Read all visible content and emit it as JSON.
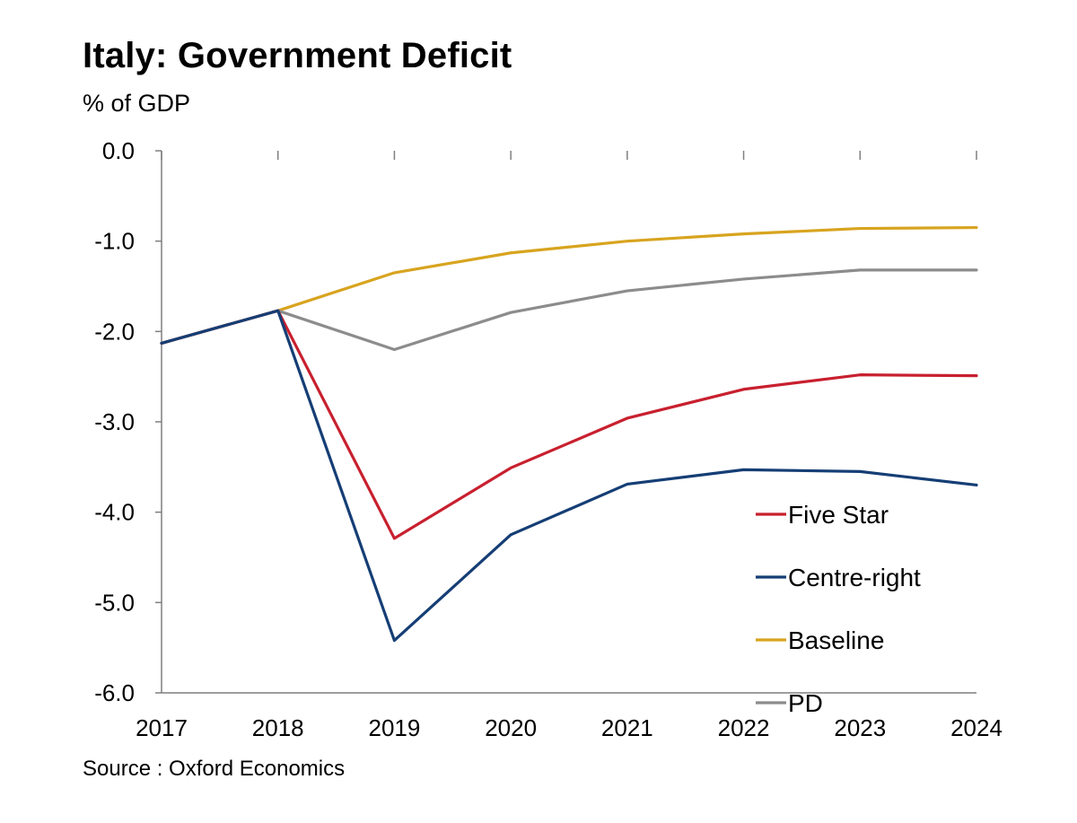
{
  "chart_data": {
    "type": "line",
    "title": "Italy:  Government Deficit",
    "subtitle": "% of GDP",
    "source": "Source : Oxford Economics",
    "x": [
      "2017",
      "2018",
      "2019",
      "2020",
      "2021",
      "2022",
      "2023",
      "2024"
    ],
    "ylim": [
      -6.0,
      0.0
    ],
    "yticks": [
      "0.0",
      "-1.0",
      "-2.0",
      "-3.0",
      "-4.0",
      "-5.0",
      "-6.0"
    ],
    "ytick_values": [
      0,
      -1,
      -2,
      -3,
      -4,
      -5,
      -6
    ],
    "grid": false,
    "legend_position": "bottom-right",
    "series": [
      {
        "name": "Five Star",
        "color": "#c8202f",
        "values": [
          -2.13,
          -1.77,
          -4.29,
          -3.51,
          -2.96,
          -2.64,
          -2.48,
          -2.49
        ]
      },
      {
        "name": "Centre-right",
        "color": "#153e75",
        "values": [
          -2.13,
          -1.77,
          -5.42,
          -4.25,
          -3.69,
          -3.53,
          -3.55,
          -3.7
        ]
      },
      {
        "name": "Baseline",
        "color": "#d8a41f",
        "values": [
          -2.13,
          -1.77,
          -1.35,
          -1.13,
          -1.0,
          -0.92,
          -0.86,
          -0.85
        ]
      },
      {
        "name": "PD",
        "color": "#8c8c8c",
        "values": [
          -2.13,
          -1.77,
          -2.2,
          -1.79,
          -1.55,
          -1.42,
          -1.32,
          -1.32
        ]
      }
    ]
  }
}
